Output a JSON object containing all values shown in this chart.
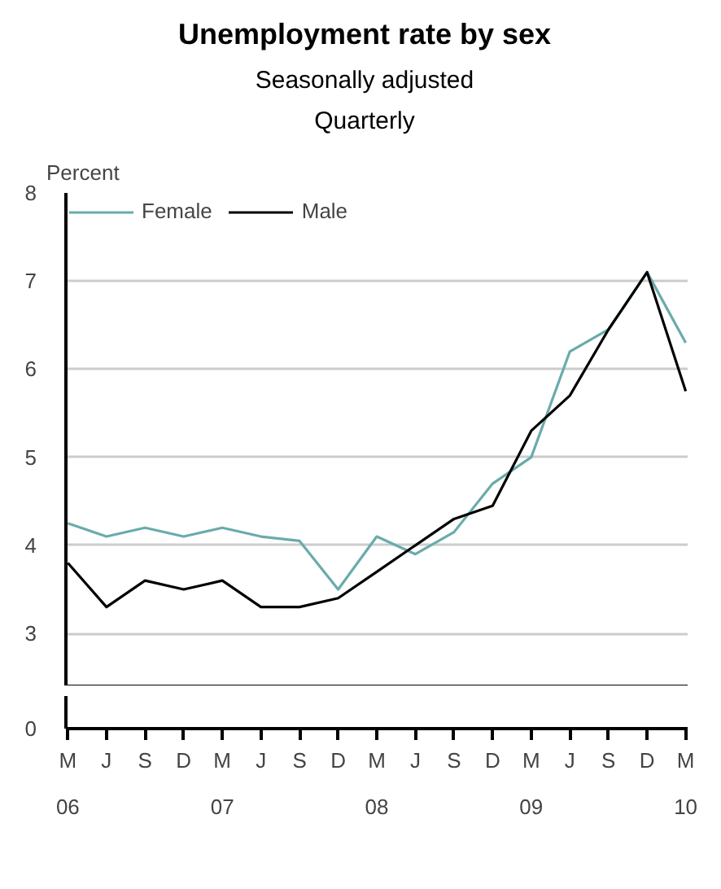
{
  "chart_data": {
    "type": "line",
    "title": "Unemployment rate by sex",
    "subtitle": "Seasonally adjusted\nQuarterly",
    "ylabel": "Percent",
    "categories": [
      "M\n06",
      "J",
      "S",
      "D",
      "M\n07",
      "J",
      "S",
      "D",
      "M\n08",
      "J",
      "S",
      "D",
      "M\n09",
      "J",
      "S",
      "D",
      "M\n10"
    ],
    "series": [
      {
        "name": "Female",
        "color": "#6aabab",
        "values": [
          4.25,
          4.1,
          4.2,
          4.1,
          4.2,
          4.1,
          4.05,
          3.5,
          4.1,
          3.9,
          4.15,
          4.7,
          5.0,
          6.2,
          6.45,
          7.1,
          6.3
        ]
      },
      {
        "name": "Male",
        "color": "#000000",
        "values": [
          3.8,
          3.3,
          3.6,
          3.5,
          3.6,
          3.3,
          3.3,
          3.4,
          3.7,
          4.0,
          4.3,
          4.45,
          5.3,
          5.7,
          6.45,
          7.1,
          5.75
        ]
      }
    ],
    "annotations": [
      "0"
    ],
    "ylim": [
      2.4,
      8
    ],
    "yticks": [
      3,
      4,
      5,
      6,
      7,
      8
    ],
    "grid": "y",
    "legend": "top left"
  }
}
